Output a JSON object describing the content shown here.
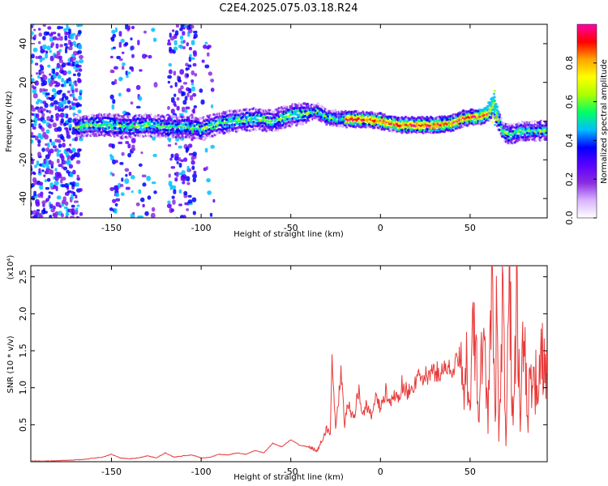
{
  "title": "C2E4.2025.075.03.18.R24",
  "chart_data": [
    {
      "type": "heatmap",
      "name": "spectrogram",
      "xlabel": "Height of straight line (km)",
      "ylabel": "Frequency (Hz)",
      "xlim": [
        -195,
        93
      ],
      "ylim": [
        -50,
        50
      ],
      "x_ticks": [
        -150,
        -100,
        -50,
        0,
        50
      ],
      "y_ticks": [
        -40,
        -20,
        0,
        20,
        40
      ],
      "colorbar": {
        "label": "Normalized spectral amplitude",
        "range": [
          0.0,
          1.0
        ],
        "ticks": [
          0.0,
          0.2,
          0.4,
          0.6,
          0.8
        ],
        "colormap": [
          "#ffffff",
          "#d9b3ff",
          "#8a2be2",
          "#5a00ff",
          "#0000ff",
          "#00bfff",
          "#00ff66",
          "#aaff00",
          "#ffff00",
          "#ffa500",
          "#ff0000",
          "#ff00aa"
        ]
      },
      "ridge_center": [
        [
          -170,
          -3
        ],
        [
          -160,
          -2
        ],
        [
          -150,
          -2
        ],
        [
          -140,
          -3
        ],
        [
          -130,
          -2
        ],
        [
          -120,
          -3
        ],
        [
          -110,
          -3
        ],
        [
          -100,
          -4
        ],
        [
          -90,
          -1
        ],
        [
          -80,
          0
        ],
        [
          -70,
          1
        ],
        [
          -60,
          0
        ],
        [
          -50,
          3
        ],
        [
          -40,
          4
        ],
        [
          -35,
          5
        ],
        [
          -30,
          2
        ],
        [
          -20,
          1
        ],
        [
          -10,
          1
        ],
        [
          0,
          0
        ],
        [
          10,
          -2
        ],
        [
          20,
          -2
        ],
        [
          30,
          -2
        ],
        [
          40,
          -1
        ],
        [
          45,
          1
        ],
        [
          50,
          2
        ],
        [
          55,
          2
        ],
        [
          60,
          4
        ],
        [
          63,
          8
        ],
        [
          65,
          3
        ],
        [
          68,
          -5
        ],
        [
          72,
          -7
        ],
        [
          80,
          -5
        ],
        [
          93,
          -5
        ]
      ]
    },
    {
      "type": "line",
      "name": "snr",
      "xlabel": "Height of straight line (km)",
      "ylabel": "SNR (10 * v/v)",
      "y_multiplier": "(x10⁴)",
      "xlim": [
        -195,
        93
      ],
      "ylim": [
        0,
        2.65
      ],
      "x_ticks": [
        -150,
        -100,
        -50,
        0,
        50
      ],
      "y_ticks": [
        0.5,
        1.0,
        1.5,
        2.0,
        2.5
      ],
      "line_color": "#e83a3a",
      "series": [
        {
          "x": [
            -195,
            -185,
            -175,
            -165,
            -160,
            -155,
            -150,
            -145,
            -140,
            -135,
            -130,
            -125,
            -120,
            -115,
            -110,
            -105,
            -100,
            -95,
            -90,
            -85,
            -80,
            -75,
            -70,
            -65,
            -60,
            -55,
            -50,
            -45,
            -40,
            -35,
            -30,
            -28,
            -27,
            -25,
            -22,
            -20,
            -18,
            -15,
            -12,
            -10,
            -8,
            -5,
            -2,
            0,
            3,
            5,
            8,
            10,
            12,
            15,
            18,
            20,
            25,
            30,
            35,
            40,
            44,
            46,
            48,
            50,
            52,
            55,
            58,
            60,
            62,
            64,
            65,
            66,
            68,
            70,
            72,
            74,
            76,
            78,
            80,
            82,
            85,
            88,
            90,
            93
          ],
          "y": [
            0.01,
            0.01,
            0.02,
            0.03,
            0.05,
            0.06,
            0.1,
            0.05,
            0.04,
            0.05,
            0.08,
            0.05,
            0.12,
            0.06,
            0.08,
            0.09,
            0.05,
            0.06,
            0.1,
            0.09,
            0.12,
            0.1,
            0.15,
            0.12,
            0.25,
            0.2,
            0.3,
            0.22,
            0.2,
            0.15,
            0.45,
            0.35,
            1.45,
            0.4,
            1.2,
            0.5,
            0.8,
            0.55,
            1.0,
            0.6,
            0.75,
            0.65,
            0.9,
            0.7,
            0.95,
            0.75,
            0.9,
            0.85,
            1.05,
            0.95,
            1.0,
            1.1,
            1.15,
            1.2,
            1.25,
            1.25,
            1.4,
            0.9,
            1.6,
            0.8,
            1.8,
            0.7,
            2.0,
            0.5,
            2.45,
            0.4,
            2.6,
            0.3,
            2.4,
            0.2,
            2.5,
            0.35,
            2.55,
            0.4,
            1.8,
            0.6,
            1.4,
            0.8,
            1.5,
            1.2
          ]
        }
      ]
    }
  ]
}
